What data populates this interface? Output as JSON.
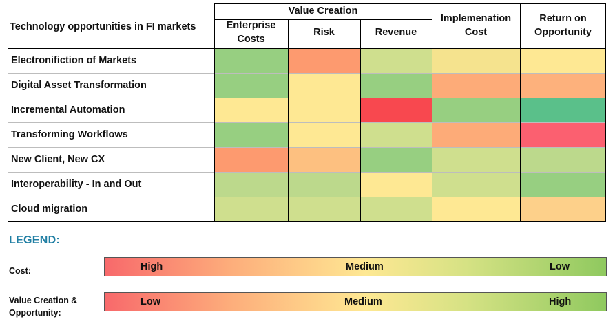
{
  "chart_data": {
    "type": "heatmap",
    "header": {
      "row_label_title": "Technology opportunities in FI markets",
      "group_title": "Value Creation",
      "columns": [
        {
          "key": "enterprise_costs",
          "label": "Enterprise\nCosts"
        },
        {
          "key": "risk",
          "label": "Risk"
        },
        {
          "key": "revenue",
          "label": "Revenue"
        },
        {
          "key": "implementation_cost",
          "label": "Implemenation\nCost"
        },
        {
          "key": "return_on_opportunity",
          "label": "Return on\nOpportunity"
        }
      ]
    },
    "rows": [
      {
        "label": "Electronifiction of Markets",
        "cells": [
          "#97cf81",
          "#fd9a6f",
          "#cfdf8e",
          "#f5e38e",
          "#fee893"
        ]
      },
      {
        "label": "Digital Asset Transformation",
        "cells": [
          "#97cf81",
          "#fee893",
          "#97cf81",
          "#fdab78",
          "#fdb17c"
        ]
      },
      {
        "label": "Incremental Automation",
        "cells": [
          "#fee893",
          "#fee893",
          "#f8484f",
          "#97cf81",
          "#5ac08a"
        ]
      },
      {
        "label": "Transforming Workflows",
        "cells": [
          "#97cf81",
          "#fee893",
          "#cfdf8e",
          "#fdab78",
          "#fb6070"
        ]
      },
      {
        "label": "New Client, New CX",
        "cells": [
          "#fd9a6f",
          "#fdc080",
          "#97cf81",
          "#cfdf8e",
          "#bcd98c"
        ]
      },
      {
        "label": "Interoperability - In and Out",
        "cells": [
          "#bcd98c",
          "#bcd98c",
          "#fee893",
          "#cfdf8e",
          "#97cf81"
        ]
      },
      {
        "label": "Cloud migration",
        "cells": [
          "#cfdf8e",
          "#cfdf8e",
          "#cfdf8e",
          "#fee893",
          "#fdd08a"
        ]
      }
    ]
  },
  "legend": {
    "title": "LEGEND:",
    "cost": {
      "label": "Cost:",
      "low_end": "High",
      "mid": "Medium",
      "high_end": "Low"
    },
    "value": {
      "label": "Value Creation &\nOpportunity:",
      "low_end": "Low",
      "mid": "Medium",
      "high_end": "High"
    }
  },
  "colors": {
    "red": "#f8696b",
    "orange": "#fdad7b",
    "yellow": "#fee893",
    "light_green": "#d6e284",
    "green": "#8fc95f"
  }
}
